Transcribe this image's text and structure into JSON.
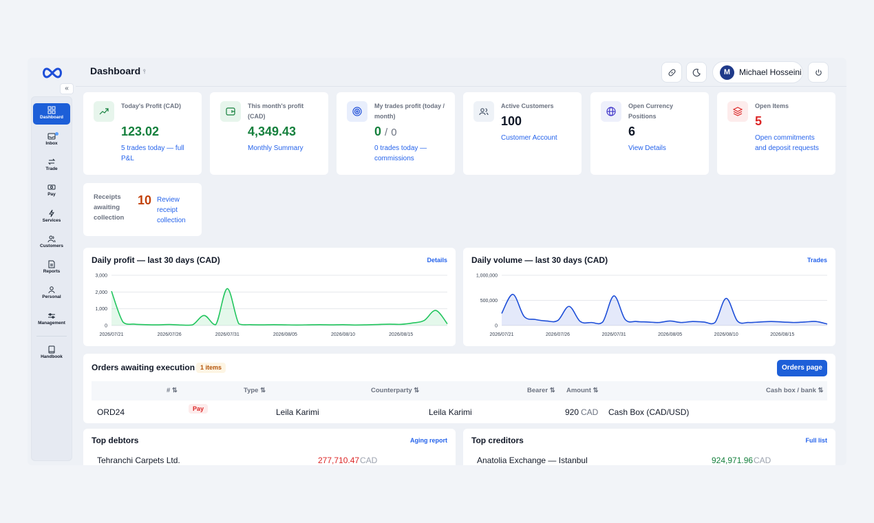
{
  "header": {
    "title": "Dashboard",
    "user_initial": "M",
    "user_name": "Michael Hosseini"
  },
  "sidebar": {
    "items": [
      {
        "label": "Dashboard",
        "icon": "dashboard-icon"
      },
      {
        "label": "Inbox",
        "icon": "inbox-icon"
      },
      {
        "label": "Trade",
        "icon": "trade-icon"
      },
      {
        "label": "Pay",
        "icon": "pay-icon"
      },
      {
        "label": "Services",
        "icon": "lightning-icon"
      },
      {
        "label": "Customers",
        "icon": "customers-icon"
      },
      {
        "label": "Reports",
        "icon": "report-icon"
      },
      {
        "label": "Personal",
        "icon": "person-icon"
      },
      {
        "label": "Management",
        "icon": "sliders-icon"
      },
      {
        "label": "Handbook",
        "icon": "book-icon"
      }
    ],
    "collapse_glyph": "«"
  },
  "stats": [
    {
      "label": "Today's Profit (CAD)",
      "value": "123.02",
      "value_color": "#15803d",
      "link": "5 trades today — full P&L",
      "icon": "trend-up-icon",
      "icon_bg": "#e7f5ec",
      "icon_color": "#15803d"
    },
    {
      "label": "This month's profit (CAD)",
      "value": "4,349.43",
      "value_color": "#15803d",
      "link": "Monthly Summary",
      "icon": "wallet-icon",
      "icon_bg": "#e7f5ec",
      "icon_color": "#15803d"
    },
    {
      "label": "My trades profit (today / month)",
      "value_a": "0",
      "value_sep": "/",
      "value_b": "0",
      "value_color": "#15803d",
      "link": "0 trades today — commissions",
      "icon": "target-icon",
      "icon_bg": "#e8eefc",
      "icon_color": "#1d4ed8"
    },
    {
      "label": "Active Customers",
      "value": "100",
      "value_color": "#111827",
      "link": "Customer Account",
      "icon": "users-icon",
      "icon_bg": "#eef2f7",
      "icon_color": "#475569"
    },
    {
      "label": "Open Currency Positions",
      "value": "6",
      "value_color": "#111827",
      "link": "View Details",
      "icon": "globe-icon",
      "icon_bg": "#eef0fb",
      "icon_color": "#4338ca"
    },
    {
      "label": "Open Items",
      "value": "5",
      "value_color": "#dc2626",
      "link": "Open commitments and deposit requests",
      "icon": "layers-icon",
      "icon_bg": "#fdecec",
      "icon_color": "#dc2626"
    }
  ],
  "receipts": {
    "label": "Receipts awaiting collection",
    "value": "10",
    "link": "Review receipt collection"
  },
  "profit_chart": {
    "title": "Daily profit — last 30 days (CAD)",
    "link": "Details"
  },
  "volume_chart": {
    "title": "Daily volume — last 30 days (CAD)",
    "link": "Trades"
  },
  "chart_data": [
    {
      "type": "area",
      "title": "Daily profit — last 30 days (CAD)",
      "color": "#22c55e",
      "ylim": [
        0,
        3000
      ],
      "yticks": [
        "3,000",
        "2,000",
        "1,000",
        "0"
      ],
      "ytick_values": [
        3000,
        2000,
        1000,
        0
      ],
      "xticks": [
        "2026/07/21",
        "2026/07/26",
        "2026/07/31",
        "2026/08/05",
        "2026/08/10",
        "2026/08/15"
      ],
      "x": [
        "2026/07/21",
        "2026/07/22",
        "2026/07/23",
        "2026/07/24",
        "2026/07/25",
        "2026/07/26",
        "2026/07/27",
        "2026/07/28",
        "2026/07/29",
        "2026/07/30",
        "2026/07/31",
        "2026/08/01",
        "2026/08/02",
        "2026/08/03",
        "2026/08/04",
        "2026/08/05",
        "2026/08/06",
        "2026/08/07",
        "2026/08/08",
        "2026/08/09",
        "2026/08/10",
        "2026/08/11",
        "2026/08/12",
        "2026/08/13",
        "2026/08/14",
        "2026/08/15",
        "2026/08/16",
        "2026/08/17",
        "2026/08/18",
        "2026/08/19"
      ],
      "values": [
        2050,
        200,
        80,
        50,
        40,
        60,
        30,
        40,
        600,
        50,
        2200,
        100,
        50,
        40,
        50,
        40,
        30,
        40,
        50,
        40,
        50,
        30,
        40,
        60,
        80,
        70,
        150,
        300,
        900,
        100
      ]
    },
    {
      "type": "area",
      "title": "Daily volume — last 30 days (CAD)",
      "color": "#1d4ed8",
      "ylim": [
        0,
        1000000
      ],
      "yticks": [
        "1,000,000",
        "500,000",
        "0"
      ],
      "ytick_values": [
        1000000,
        500000,
        0
      ],
      "xticks": [
        "2026/07/21",
        "2026/07/26",
        "2026/07/31",
        "2026/08/05",
        "2026/08/10",
        "2026/08/15"
      ],
      "x": [
        "2026/07/21",
        "2026/07/22",
        "2026/07/23",
        "2026/07/24",
        "2026/07/25",
        "2026/07/26",
        "2026/07/27",
        "2026/07/28",
        "2026/07/29",
        "2026/07/30",
        "2026/07/31",
        "2026/08/01",
        "2026/08/02",
        "2026/08/03",
        "2026/08/04",
        "2026/08/05",
        "2026/08/06",
        "2026/08/07",
        "2026/08/08",
        "2026/08/09",
        "2026/08/10",
        "2026/08/11",
        "2026/08/12",
        "2026/08/13",
        "2026/08/14",
        "2026/08/15",
        "2026/08/16",
        "2026/08/17",
        "2026/08/18",
        "2026/08/19"
      ],
      "values": [
        240000,
        620000,
        180000,
        120000,
        90000,
        100000,
        380000,
        80000,
        60000,
        70000,
        590000,
        120000,
        80000,
        70000,
        60000,
        90000,
        60000,
        80000,
        70000,
        60000,
        540000,
        90000,
        60000,
        70000,
        80000,
        70000,
        60000,
        70000,
        80000,
        30000
      ]
    }
  ],
  "orders": {
    "title": "Orders awaiting execution",
    "badge": "1 items",
    "button": "Orders page",
    "columns": [
      "# ⇅",
      "Type ⇅",
      "Counterparty ⇅",
      "Bearer ⇅",
      "Amount ⇅",
      "Cash box / bank ⇅"
    ],
    "row": {
      "id": "ORD24",
      "type": "Pay",
      "counterparty": "Leila Karimi",
      "bearer": "Leila Karimi",
      "amount": "920",
      "currency": "CAD",
      "cashbox": "Cash Box (CAD/USD)"
    }
  },
  "debtors": {
    "title": "Top debtors",
    "link": "Aging report",
    "name": "Tehranchi Carpets Ltd.",
    "amount": "277,710.47",
    "currency": "CAD"
  },
  "creditors": {
    "title": "Top creditors",
    "link": "Full list",
    "name": "Anatolia Exchange — Istanbul",
    "amount": "924,971.96",
    "currency": "CAD"
  }
}
